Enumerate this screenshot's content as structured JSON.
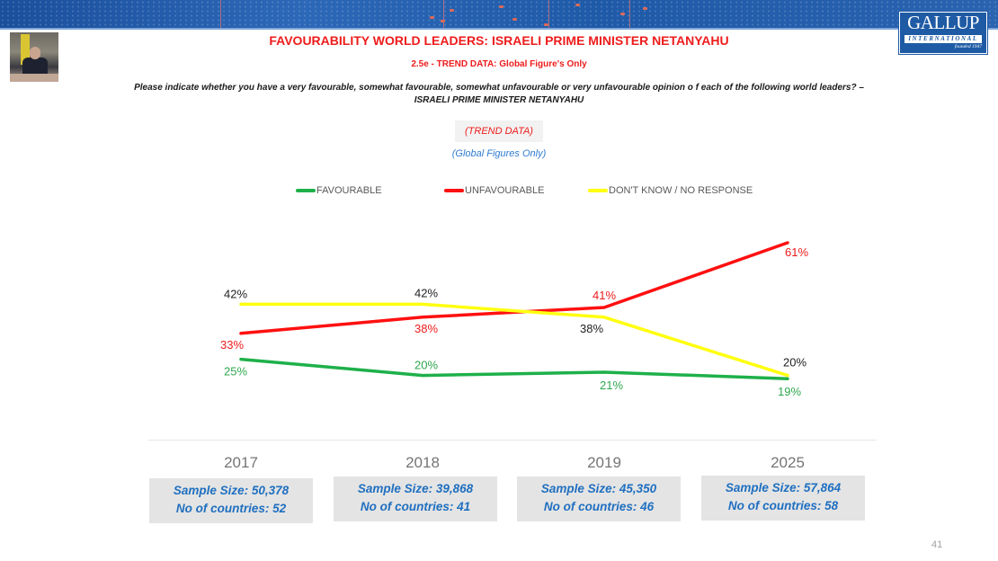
{
  "header": {
    "title": "FAVOURABILITY WORLD LEADERS: ISRAELI PRIME MINISTER NETANYAHU",
    "subtitle": "2.5e - TREND DATA: Global Figure's Only",
    "question_line1": "Please indicate whether you have a very favourable, somewhat favourable, somewhat unfavourable or very unfavourable opinion o f each of the following world leaders? –",
    "question_line2": "ISRAELI PRIME MINISTER NETANYAHU",
    "trend_badge": "(TREND DATA)",
    "global_note": "(Global Figures Only)"
  },
  "logo": {
    "name": "GALLUP",
    "tagline": "INTERNATIONAL",
    "founded": "founded 1947"
  },
  "chart_data": {
    "type": "line",
    "categories": [
      "2017",
      "2018",
      "2019",
      "2025"
    ],
    "series": [
      {
        "name": "FAVOURABLE",
        "color": "#1eb04a",
        "values": [
          25,
          20,
          21,
          19
        ],
        "labels": [
          "25%",
          "20%",
          "21%",
          "19%"
        ],
        "label_color": "#2fa84f"
      },
      {
        "name": "UNFAVOURABLE",
        "color": "#ff1010",
        "values": [
          33,
          38,
          41,
          61
        ],
        "labels": [
          "33%",
          "38%",
          "41%",
          "61%"
        ],
        "label_color": "#ee1c1c"
      },
      {
        "name": "DON'T KNOW / NO RESPONSE",
        "color": "#ffff10",
        "values": [
          42,
          42,
          38,
          20
        ],
        "labels": [
          "42%",
          "42%",
          "38%",
          "20%"
        ],
        "label_color": "#222222"
      }
    ],
    "legend_position": "top",
    "grid": false,
    "ylim": [
      15,
      65
    ],
    "title": "",
    "xlabel": "",
    "ylabel": ""
  },
  "samples": [
    {
      "year": "2017",
      "sample": "Sample Size: 50,378",
      "countries": "No of countries:  52"
    },
    {
      "year": "2018",
      "sample": "Sample Size: 39,868",
      "countries": "No of countries: 41"
    },
    {
      "year": "2019",
      "sample": "Sample Size: 45,350",
      "countries": "No of countries: 46"
    },
    {
      "year": "2025",
      "sample": "Sample Size: 57,864",
      "countries": "No of countries: 58"
    }
  ],
  "page_number": "41"
}
